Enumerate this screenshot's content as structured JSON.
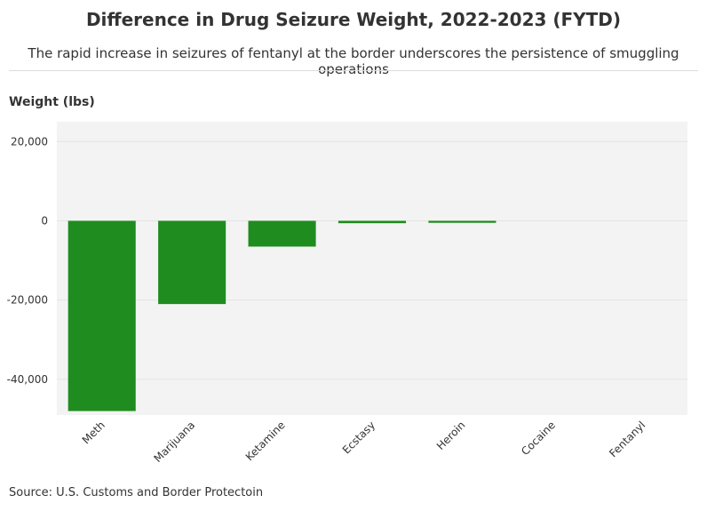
{
  "chart_data": {
    "type": "bar",
    "title": "Difference in Drug Seizure Weight, 2022-2023 (FYTD)",
    "subtitle": "The rapid increase in seizures of fentanyl at the border underscores the persistence of smuggling operations",
    "ylabel": "Weight (lbs)",
    "xlabel": "",
    "source": "Source: U.S. Customs and Border Protectoin",
    "categories": [
      "Meth",
      "Marijuana",
      "Ketamine",
      "Ecstasy",
      "Heroin",
      "Cocaine",
      "Fentanyl"
    ],
    "values": [
      -48000,
      -21000,
      -6500,
      -600,
      -500,
      0,
      0
    ],
    "ylim": [
      -49000,
      25000
    ],
    "yticks": [
      20000,
      0,
      -20000,
      -40000
    ],
    "ytick_labels": [
      "20,000",
      "0",
      "-20,000",
      "-40,000"
    ],
    "bar_color": "#1e8c1e",
    "plot_background": "#f3f3f3",
    "grid": true
  }
}
